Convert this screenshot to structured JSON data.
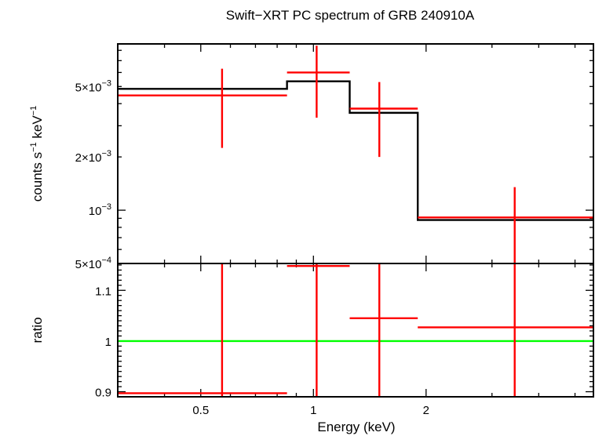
{
  "chart_data": {
    "title": "Swift−XRT PC spectrum of GRB 240910A",
    "xlabel": "Energy (keV)",
    "x_scale": "log",
    "xlim": [
      0.3,
      5.6
    ],
    "x_ticks": [
      {
        "value": 0.5,
        "label": "0.5"
      },
      {
        "value": 1,
        "label": "1"
      },
      {
        "value": 2,
        "label": "2"
      }
    ],
    "colors": {
      "data": "#ff0000",
      "model": "#000000",
      "unity": "#00ff00"
    },
    "panels": [
      {
        "name": "spectrum",
        "type": "step-with-errorbars",
        "ylabel": {
          "main": "counts s",
          "sup1": "−1",
          "mid": " keV",
          "sup2": "−1"
        },
        "y_scale": "log",
        "ylim": [
          0.0005,
          0.0087
        ],
        "y_ticks": [
          {
            "value": 0.005,
            "base": "5×10",
            "exp": "−3"
          },
          {
            "value": 0.002,
            "base": "2×10",
            "exp": "−3"
          },
          {
            "value": 0.001,
            "base": "10",
            "exp": "−3"
          },
          {
            "value": 0.0005,
            "base": "5×10",
            "exp": "−4"
          }
        ],
        "model_steps": [
          {
            "x0": 0.3,
            "x1": 0.85,
            "y": 0.00485
          },
          {
            "x0": 0.85,
            "x1": 1.25,
            "y": 0.00535
          },
          {
            "x0": 1.25,
            "x1": 1.9,
            "y": 0.00355
          },
          {
            "x0": 1.9,
            "x1": 5.6,
            "y": 0.00088
          }
        ],
        "data_points": [
          {
            "x": 0.57,
            "xlo": 0.3,
            "xhi": 0.85,
            "y": 0.00445,
            "ylo": 0.00225,
            "yhi": 0.0063
          },
          {
            "x": 1.02,
            "xlo": 0.85,
            "xhi": 1.25,
            "y": 0.006,
            "ylo": 0.00333,
            "yhi": 0.0085
          },
          {
            "x": 1.5,
            "xlo": 1.25,
            "xhi": 1.9,
            "y": 0.00375,
            "ylo": 0.002,
            "yhi": 0.0053
          },
          {
            "x": 3.45,
            "xlo": 1.9,
            "xhi": 5.6,
            "y": 0.00091,
            "ylo": 0.0005,
            "yhi": 0.00135
          }
        ]
      },
      {
        "name": "ratio",
        "type": "ratio-with-errorbars",
        "ylabel": {
          "main": "ratio"
        },
        "y_scale": "linear",
        "ylim": [
          0.89,
          1.153
        ],
        "y_ticks": [
          {
            "value": 1.1,
            "base": "1.1"
          },
          {
            "value": 1,
            "base": "1"
          },
          {
            "value": 0.9,
            "base": "0.9"
          }
        ],
        "unity": 1,
        "data_points": [
          {
            "x": 0.57,
            "xlo": 0.3,
            "xhi": 0.85,
            "y": 0.897,
            "ylo": 0.89,
            "yhi": 1.153
          },
          {
            "x": 1.02,
            "xlo": 0.85,
            "xhi": 1.25,
            "y": 1.148,
            "ylo": 0.89,
            "yhi": 1.153
          },
          {
            "x": 1.5,
            "xlo": 1.25,
            "xhi": 1.9,
            "y": 1.045,
            "ylo": 0.89,
            "yhi": 1.153
          },
          {
            "x": 3.45,
            "xlo": 1.9,
            "xhi": 5.6,
            "y": 1.027,
            "ylo": 0.89,
            "yhi": 1.153
          }
        ]
      }
    ]
  }
}
